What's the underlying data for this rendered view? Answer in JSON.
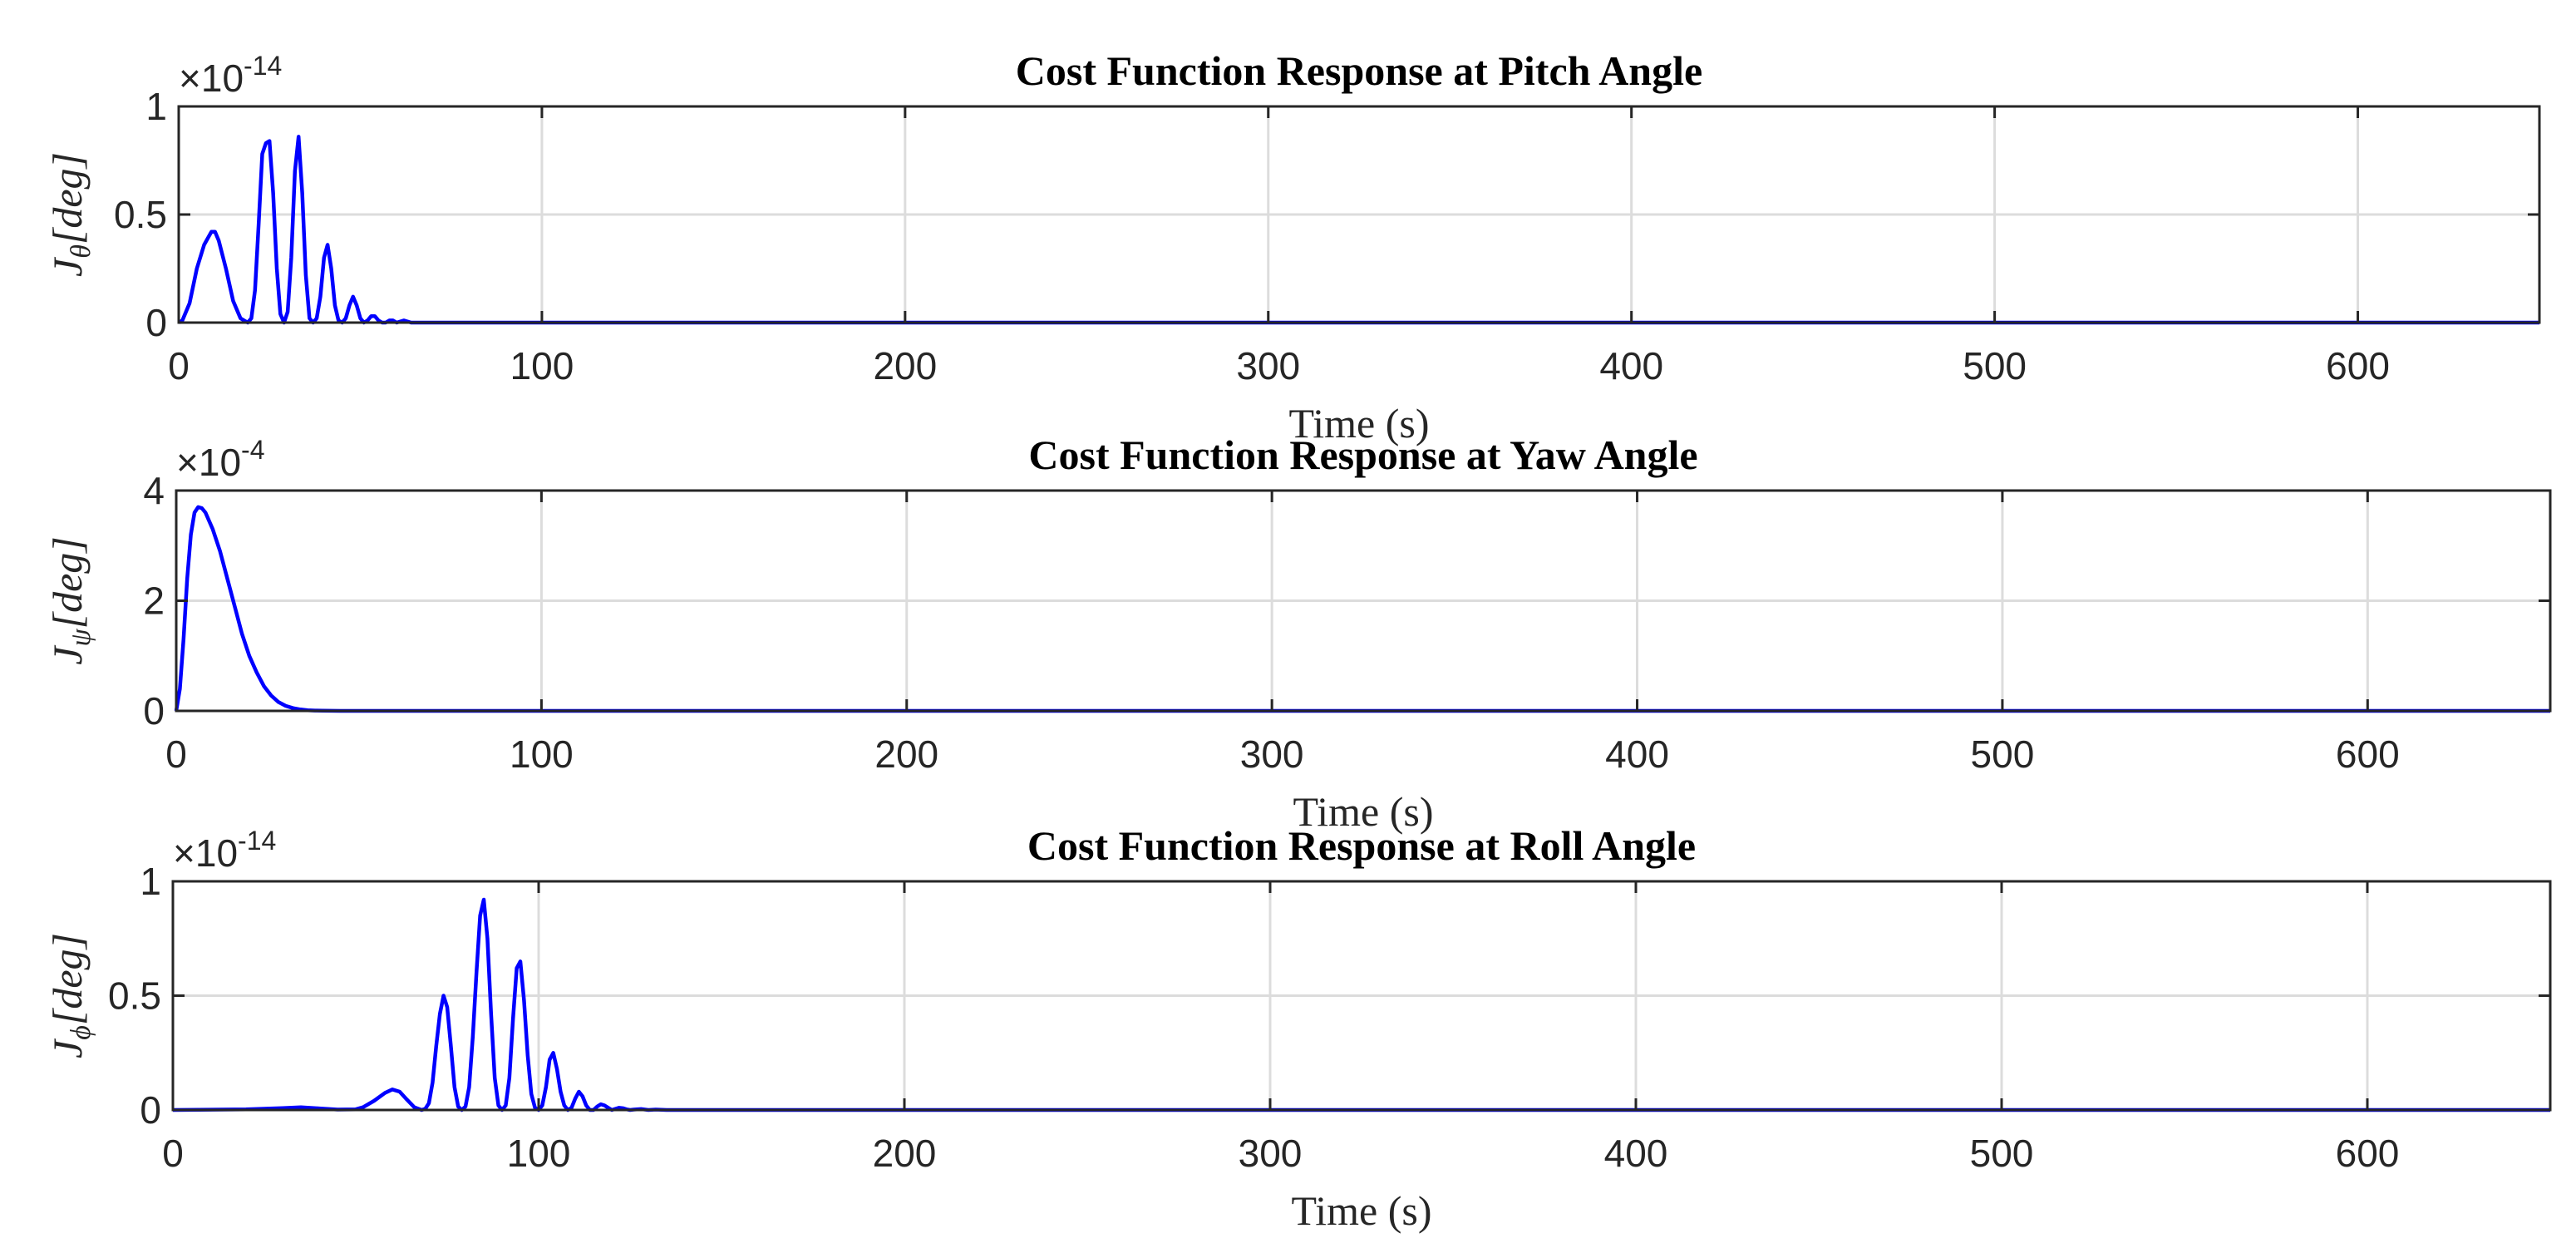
{
  "chart_data": [
    {
      "type": "line",
      "title": "Cost Function Response at Pitch Angle",
      "xlabel": "Time (s)",
      "ylabel_base": "J",
      "ylabel_symbol": "θ",
      "ylabel_unit": "[deg]",
      "ylabel_symbol_name": "theta",
      "xlim": [
        0,
        650
      ],
      "ylim": [
        0,
        1
      ],
      "xticks": [
        0,
        100,
        200,
        300,
        400,
        500,
        600
      ],
      "yticks": [
        0,
        0.5,
        1
      ],
      "ytick_labels": [
        "0",
        "0.5",
        "1"
      ],
      "y_exponent": "-14",
      "y_exponent_prefix": "×10",
      "grid": true,
      "series": [
        {
          "name": "J_theta",
          "color": "#0000ff",
          "x": [
            0,
            1,
            3,
            5,
            7,
            9,
            10,
            11,
            13,
            15,
            17,
            19,
            20,
            21,
            22,
            23,
            24,
            25,
            26,
            27,
            28,
            29,
            30,
            31,
            32,
            33,
            34,
            35,
            36,
            37,
            38,
            39,
            40,
            41,
            42,
            43,
            44,
            45,
            46,
            47,
            48,
            49,
            50,
            51,
            52,
            53,
            54,
            55,
            56,
            57,
            58,
            59,
            60,
            62,
            64,
            65,
            66,
            68,
            70,
            72,
            100,
            650
          ],
          "y": [
            0,
            0.01,
            0.09,
            0.25,
            0.36,
            0.42,
            0.42,
            0.38,
            0.25,
            0.1,
            0.02,
            0.0,
            0.02,
            0.15,
            0.45,
            0.78,
            0.83,
            0.84,
            0.6,
            0.25,
            0.04,
            0.0,
            0.05,
            0.3,
            0.7,
            0.86,
            0.6,
            0.22,
            0.02,
            0.0,
            0.02,
            0.12,
            0.3,
            0.36,
            0.25,
            0.08,
            0.01,
            0.0,
            0.02,
            0.08,
            0.12,
            0.08,
            0.02,
            0.0,
            0.01,
            0.03,
            0.03,
            0.01,
            0.0,
            0.0,
            0.01,
            0.01,
            0.0,
            0.01,
            0.0,
            0,
            0,
            0,
            0,
            0,
            0,
            0
          ]
        }
      ]
    },
    {
      "type": "line",
      "title": "Cost Function Response at Yaw Angle",
      "xlabel": "Time (s)",
      "ylabel_base": "J",
      "ylabel_symbol": "ψ",
      "ylabel_unit": "[deg]",
      "ylabel_symbol_name": "psi",
      "xlim": [
        0,
        650
      ],
      "ylim": [
        0,
        4
      ],
      "xticks": [
        0,
        100,
        200,
        300,
        400,
        500,
        600
      ],
      "yticks": [
        0,
        2,
        4
      ],
      "ytick_labels": [
        "0",
        "2",
        "4"
      ],
      "y_exponent": "-4",
      "y_exponent_prefix": "×10",
      "grid": true,
      "series": [
        {
          "name": "J_psi",
          "color": "#0000ff",
          "x": [
            0,
            1,
            2,
            3,
            4,
            5,
            6,
            7,
            8,
            9,
            10,
            12,
            14,
            16,
            18,
            20,
            22,
            24,
            26,
            28,
            30,
            32,
            34,
            36,
            38,
            40,
            45,
            50,
            650
          ],
          "y": [
            0,
            0.4,
            1.3,
            2.4,
            3.2,
            3.6,
            3.7,
            3.68,
            3.6,
            3.45,
            3.3,
            2.9,
            2.4,
            1.9,
            1.4,
            1.0,
            0.7,
            0.45,
            0.28,
            0.16,
            0.09,
            0.05,
            0.025,
            0.012,
            0.006,
            0.003,
            0.0005,
            0,
            0
          ]
        }
      ]
    },
    {
      "type": "line",
      "title": "Cost Function Response at Roll Angle",
      "xlabel": "Time (s)",
      "ylabel_base": "J",
      "ylabel_symbol": "ϕ",
      "ylabel_unit": "[deg]",
      "ylabel_symbol_name": "phi",
      "xlim": [
        0,
        650
      ],
      "ylim": [
        0,
        1
      ],
      "xticks": [
        0,
        100,
        200,
        300,
        400,
        500,
        600
      ],
      "yticks": [
        0,
        0.5,
        1
      ],
      "ytick_labels": [
        "0",
        "0.5",
        "1"
      ],
      "y_exponent": "-14",
      "y_exponent_prefix": "×10",
      "grid": true,
      "series": [
        {
          "name": "J_phi",
          "color": "#0000ff",
          "x": [
            0,
            20,
            30,
            35,
            40,
            45,
            50,
            52,
            55,
            58,
            60,
            62,
            64,
            66,
            68,
            69,
            70,
            71,
            72,
            73,
            74,
            75,
            76,
            77,
            78,
            79,
            80,
            81,
            82,
            83,
            84,
            85,
            86,
            87,
            88,
            89,
            90,
            91,
            92,
            93,
            94,
            95,
            96,
            97,
            98,
            99,
            100,
            101,
            102,
            103,
            104,
            105,
            106,
            107,
            108,
            109,
            110,
            111,
            112,
            113,
            114,
            115,
            116,
            117,
            118,
            119,
            120,
            121,
            122,
            123,
            124,
            125,
            126,
            128,
            130,
            132,
            135,
            140,
            150,
            650
          ],
          "y": [
            0,
            0.003,
            0.008,
            0.012,
            0.007,
            0.002,
            0.003,
            0.012,
            0.04,
            0.075,
            0.09,
            0.08,
            0.045,
            0.012,
            0.0,
            0.005,
            0.03,
            0.12,
            0.28,
            0.42,
            0.5,
            0.45,
            0.28,
            0.1,
            0.015,
            0.0,
            0.015,
            0.1,
            0.32,
            0.6,
            0.85,
            0.92,
            0.75,
            0.42,
            0.14,
            0.02,
            0.0,
            0.02,
            0.14,
            0.4,
            0.62,
            0.65,
            0.48,
            0.24,
            0.07,
            0.01,
            0.0,
            0.02,
            0.1,
            0.22,
            0.25,
            0.18,
            0.08,
            0.02,
            0.0,
            0.01,
            0.05,
            0.08,
            0.06,
            0.02,
            0.0,
            0.0,
            0.015,
            0.025,
            0.02,
            0.01,
            0.0,
            0.005,
            0.01,
            0.008,
            0.003,
            0.0,
            0.002,
            0.004,
            0.0,
            0.002,
            0.0,
            0.0,
            0,
            0
          ]
        }
      ]
    }
  ]
}
